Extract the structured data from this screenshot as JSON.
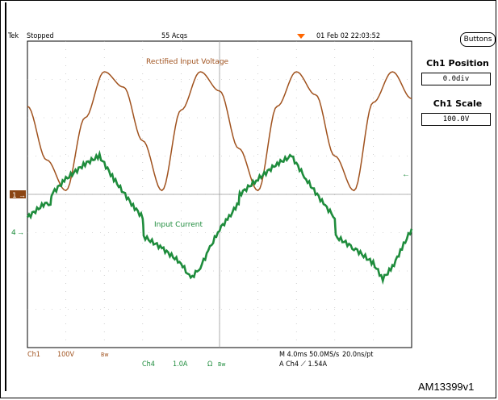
{
  "status_bar": {
    "brand": "Tek",
    "state": "Stopped",
    "acquisitions": "55 Acqs",
    "datetime": "01 Feb 02 22:03:52"
  },
  "side_panel": {
    "buttons_label": "Buttons",
    "ch1_position_label": "Ch1 Position",
    "ch1_position_value": "0.0div",
    "ch1_scale_label": "Ch1 Scale",
    "ch1_scale_value": "100.0V"
  },
  "bottom_readout": {
    "ch1_label": "Ch1",
    "ch1_scale": "100V",
    "ch1_bw": "Bw",
    "ch4_label": "Ch4",
    "ch4_scale": "1.0A",
    "ch4_coupling": "Ω",
    "ch4_bw": "Bw",
    "horizontal": "M 4.0ms 50.0MS/s",
    "record": "20.0ns/pt",
    "trigger": "A  Ch4  ⟋  1.54A"
  },
  "markers": {
    "ch1_marker": "1",
    "ch4_marker": "4"
  },
  "figure_id": "AM13399v1",
  "colors": {
    "voltage_trace": "#a0521e",
    "current_trace": "#1e8c3c",
    "trigger_marker": "#ff6600",
    "ch1_marker_bg": "#8b4513",
    "grid": "#b0b0b0"
  },
  "chart_data": {
    "type": "line",
    "grid": true,
    "x_divisions": 10,
    "y_divisions": 8,
    "x_unit": "ms",
    "x_per_div": 4.0,
    "x_range": [
      0,
      40
    ],
    "y_range_div": [
      -4,
      4
    ],
    "series": [
      {
        "name": "Rectified Input Voltage",
        "channel": "Ch1",
        "volts_per_div": 100,
        "x": [
          0,
          2,
          4,
          6,
          8,
          10,
          12,
          14,
          16,
          18,
          20,
          22,
          24,
          26,
          28,
          30,
          32,
          34,
          36,
          38,
          40
        ],
        "y_div": [
          2.3,
          0.9,
          0.1,
          2.0,
          3.2,
          2.8,
          1.4,
          0.1,
          2.2,
          3.2,
          2.7,
          1.2,
          0.1,
          2.3,
          3.2,
          2.6,
          1.0,
          0.1,
          2.4,
          3.2,
          2.5
        ]
      },
      {
        "name": "Input Current",
        "channel": "Ch4",
        "amps_per_div": 1.0,
        "x": [
          0,
          2,
          2.4,
          2.5,
          4,
          6,
          7.5,
          9,
          11,
          12,
          12.1,
          14,
          16,
          17,
          18,
          19,
          20,
          21,
          22,
          22.1,
          24,
          26,
          27.5,
          29,
          31,
          32,
          32.1,
          34,
          36,
          37,
          38,
          39,
          40
        ],
        "y_div": [
          -0.6,
          -0.2,
          -0.3,
          0.0,
          0.4,
          0.8,
          1.0,
          0.4,
          -0.3,
          -0.6,
          -1.1,
          -1.4,
          -1.8,
          -2.2,
          -1.9,
          -1.4,
          -0.9,
          -0.6,
          -0.2,
          0.0,
          0.4,
          0.8,
          1.0,
          0.4,
          -0.3,
          -0.6,
          -1.1,
          -1.4,
          -1.8,
          -2.2,
          -1.9,
          -1.4,
          -0.9
        ]
      }
    ]
  }
}
